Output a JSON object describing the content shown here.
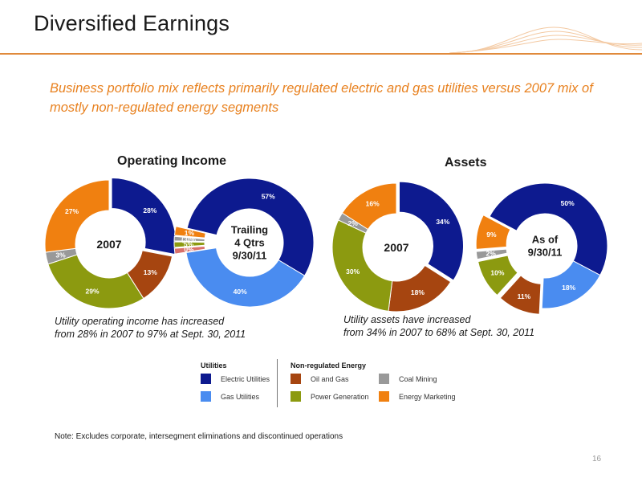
{
  "title": "Diversified Earnings",
  "subtitle": "Business portfolio mix reflects primarily regulated electric and gas utilities versus 2007 mix of mostly non-regulated energy segments",
  "colors": {
    "accent": "#e8811f",
    "electric_utilities": "#0d1a8f",
    "gas_utilities": "#4a8cf0",
    "oil_and_gas": "#a64510",
    "power_generation": "#8c9a10",
    "coal_mining": "#999999",
    "energy_marketing": "#f08010",
    "negative_slice": "#d9706a"
  },
  "sections": {
    "operating_income": "Operating Income",
    "assets": "Assets"
  },
  "chart_data": [
    {
      "type": "pie",
      "title": "Operating Income",
      "center_label": "2007",
      "slices": [
        {
          "category": "Electric Utilities",
          "value": 28,
          "label": "28%"
        },
        {
          "category": "Oil and Gas",
          "value": 13,
          "label": "13%"
        },
        {
          "category": "Power Generation",
          "value": 29,
          "label": "29%"
        },
        {
          "category": "Coal Mining",
          "value": 3,
          "label": "3%"
        },
        {
          "category": "Energy Marketing",
          "value": 27,
          "label": "27%"
        }
      ]
    },
    {
      "type": "pie",
      "title": "Operating Income",
      "center_label": "Trailing 4 Qtrs 9/30/11",
      "center_lines": [
        "Trailing",
        "4 Qtrs",
        "9/30/11"
      ],
      "slices": [
        {
          "category": "Electric Utilities",
          "value": 57,
          "label": "57%"
        },
        {
          "category": "Gas Utilities",
          "value": 40,
          "label": "40%"
        },
        {
          "category": "Energy Marketing (negative)",
          "value": 0,
          "label": "0%"
        },
        {
          "category": "Power Generation",
          "value": 5,
          "label": "5%"
        },
        {
          "category": "Coal Mining",
          "value": -3,
          "label": "(3)%"
        },
        {
          "category": "Energy Marketing",
          "value": 1,
          "label": "1%"
        }
      ]
    },
    {
      "type": "pie",
      "title": "Assets",
      "center_label": "2007",
      "slices": [
        {
          "category": "Electric Utilities",
          "value": 34,
          "label": "34%"
        },
        {
          "category": "Oil and Gas",
          "value": 18,
          "label": "18%"
        },
        {
          "category": "Power Generation",
          "value": 30,
          "label": "30%"
        },
        {
          "category": "Coal Mining",
          "value": 2,
          "label": "2%"
        },
        {
          "category": "Energy Marketing",
          "value": 16,
          "label": "16%"
        }
      ]
    },
    {
      "type": "pie",
      "title": "Assets",
      "center_label": "As of 9/30/11",
      "center_lines": [
        "As of",
        "9/30/11"
      ],
      "slices": [
        {
          "category": "Electric Utilities",
          "value": 50,
          "label": "50%"
        },
        {
          "category": "Gas Utilities",
          "value": 18,
          "label": "18%"
        },
        {
          "category": "Oil and Gas",
          "value": 11,
          "label": "11%"
        },
        {
          "category": "Power Generation",
          "value": 10,
          "label": "10%"
        },
        {
          "category": "Coal Mining",
          "value": 2,
          "label": "2%"
        },
        {
          "category": "Energy Marketing",
          "value": 9,
          "label": "9%"
        }
      ]
    }
  ],
  "captions": {
    "operating_income": [
      "Utility operating income has increased",
      "from 28% in 2007 to 97% at Sept. 30, 2011"
    ],
    "assets": [
      "Utility assets have increased",
      "from 34% in 2007 to 68% at Sept. 30, 2011"
    ]
  },
  "legend": {
    "utilities_heading": "Utilities",
    "nonreg_heading": "Non-regulated Energy",
    "items": {
      "electric_utilities": "Electric Utilities",
      "gas_utilities": "Gas Utilities",
      "oil_and_gas": "Oil and Gas",
      "power_generation": "Power Generation",
      "coal_mining": "Coal Mining",
      "energy_marketing": "Energy Marketing"
    }
  },
  "note": "Note:  Excludes corporate, intersegment eliminations and discontinued operations",
  "page_number": "16"
}
